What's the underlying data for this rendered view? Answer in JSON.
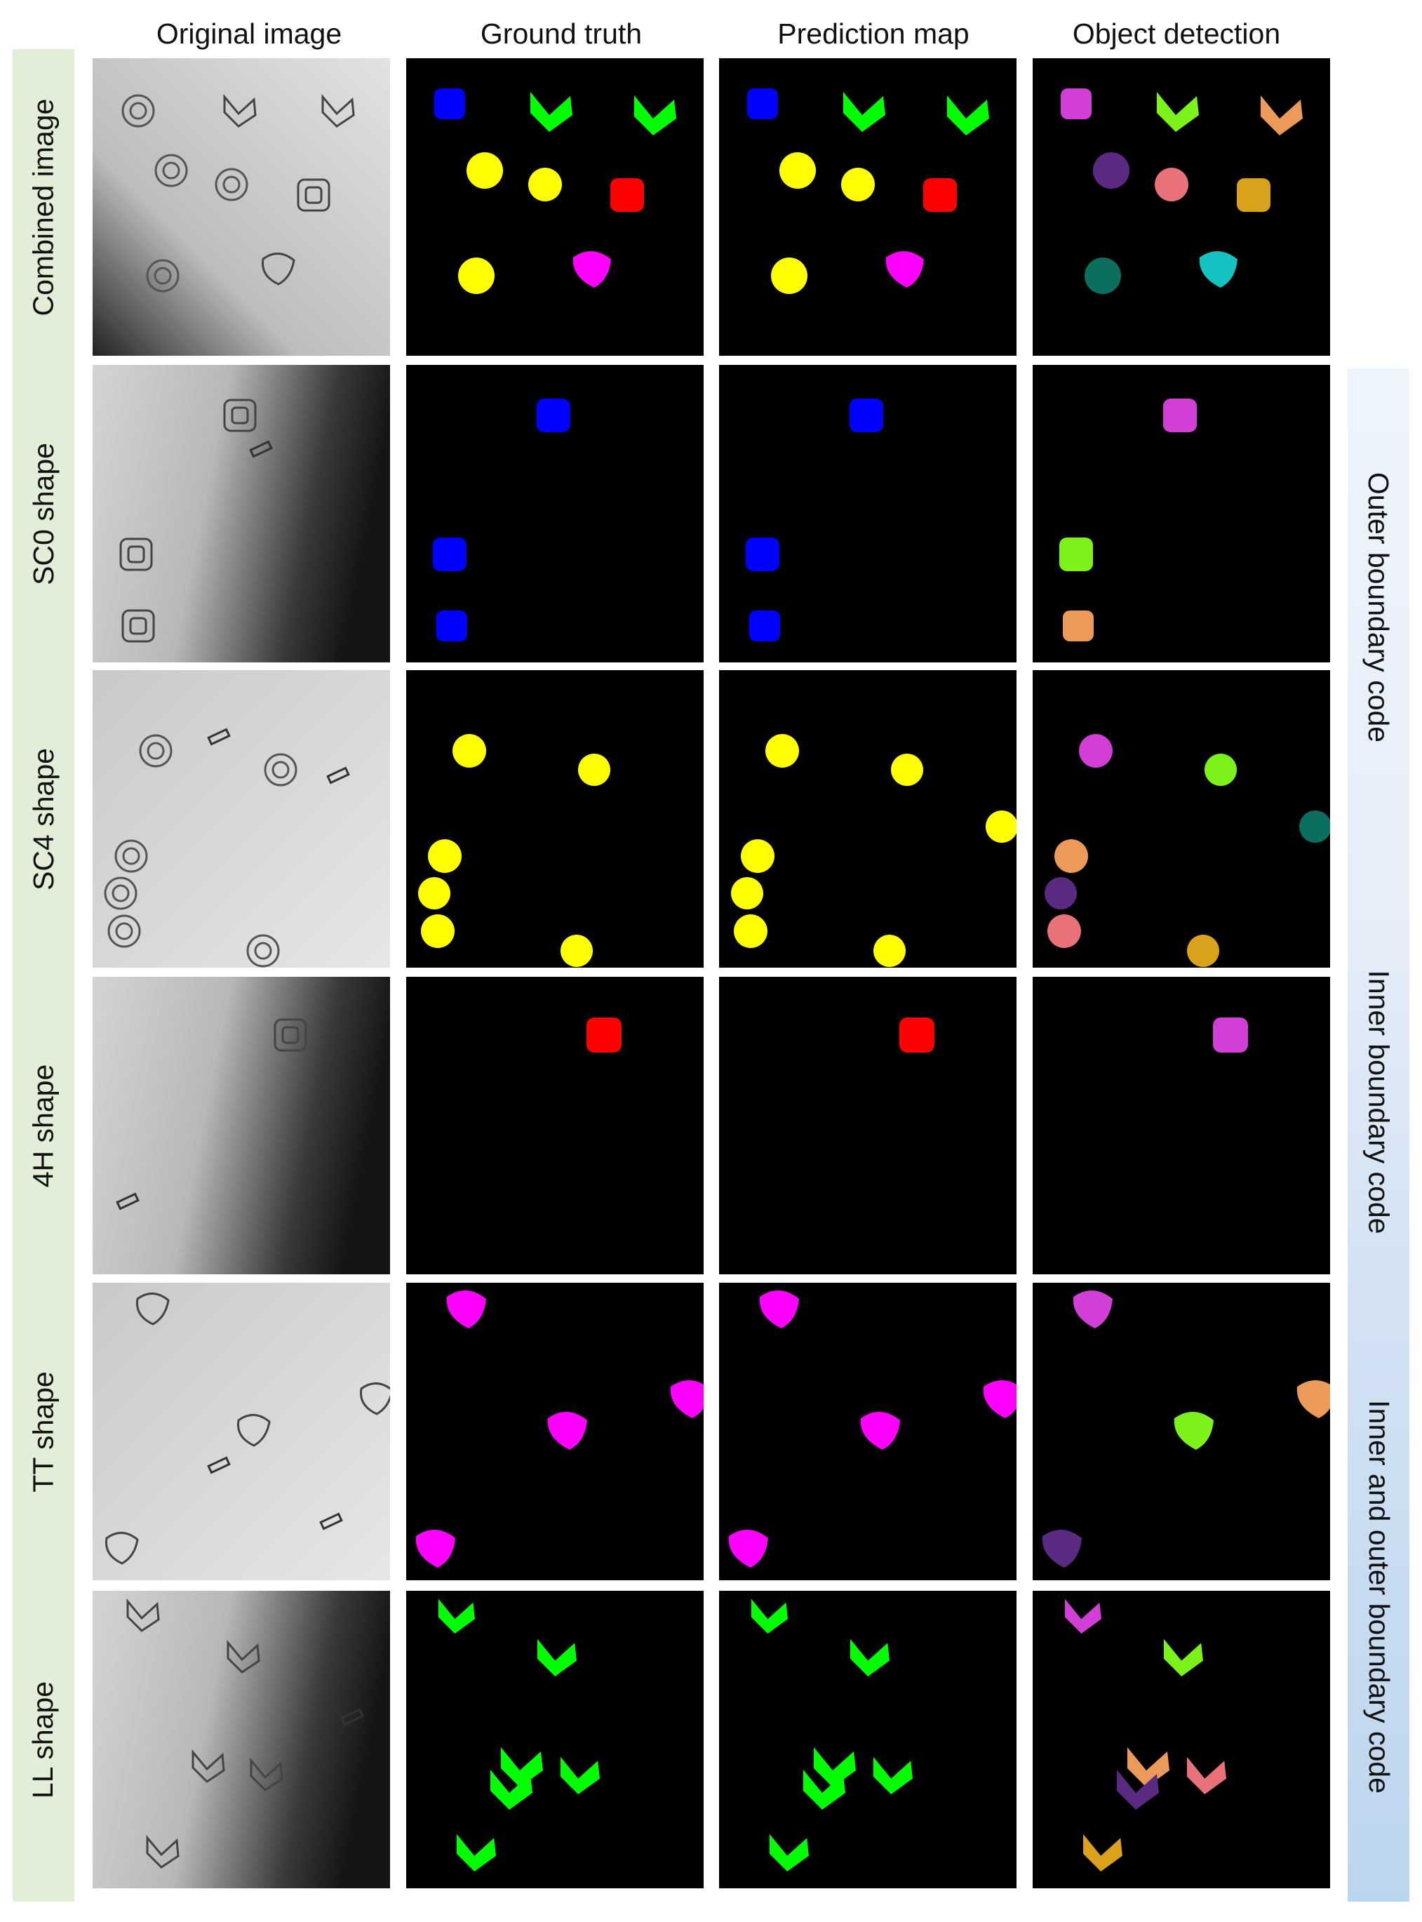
{
  "columns": [
    "Original image",
    "Ground truth",
    "Prediction map",
    "Object detection"
  ],
  "rows": [
    {
      "label": "Combined image",
      "brightness": "center-light"
    },
    {
      "label": "SC0 shape",
      "brightness": "dark-right"
    },
    {
      "label": "SC4 shape",
      "brightness": "flat-light"
    },
    {
      "label": "4H shape",
      "brightness": "dark-right"
    },
    {
      "label": "TT shape",
      "brightness": "flat-light"
    },
    {
      "label": "LL shape",
      "brightness": "dark-right"
    }
  ],
  "side_labels": [
    "Outer boundary code",
    "Inner boundary code",
    "Inner and outer boundary code"
  ],
  "class_colors": {
    "SC0": "#0000ff",
    "SC4": "#ffff00",
    "4H": "#ff0000",
    "TT": "#ff00ff",
    "LL": "#00ff00"
  },
  "detection_palette": [
    "#d13fd6",
    "#7cf21a",
    "#ec9a5a",
    "#5a2a82",
    "#e9727a",
    "#d9a21a",
    "#0b6e5e",
    "#15c2c2"
  ]
}
